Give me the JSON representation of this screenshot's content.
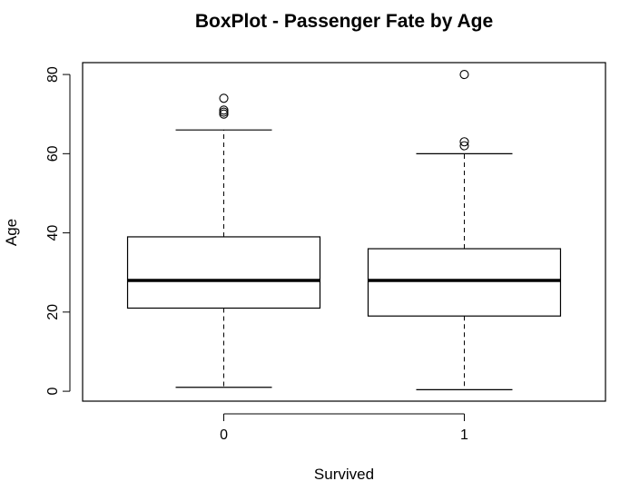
{
  "chart_data": {
    "type": "boxplot",
    "title": "BoxPlot - Passenger Fate by Age",
    "xlabel": "Survived",
    "ylabel": "Age",
    "categories": [
      "0",
      "1"
    ],
    "ylim": [
      -2.5,
      83
    ],
    "yticks": [
      0,
      20,
      40,
      60,
      80
    ],
    "grid": false,
    "boxes": [
      {
        "category": "0",
        "whisker_low": 1,
        "q1": 21,
        "median": 28,
        "q3": 39,
        "whisker_high": 66,
        "outliers": [
          70,
          70.5,
          71,
          74
        ]
      },
      {
        "category": "1",
        "whisker_low": 0.4,
        "q1": 19,
        "median": 28,
        "q3": 36,
        "whisker_high": 60,
        "outliers": [
          62,
          63,
          80
        ]
      }
    ],
    "colors": {
      "stroke": "#000000",
      "background": "#ffffff"
    }
  }
}
